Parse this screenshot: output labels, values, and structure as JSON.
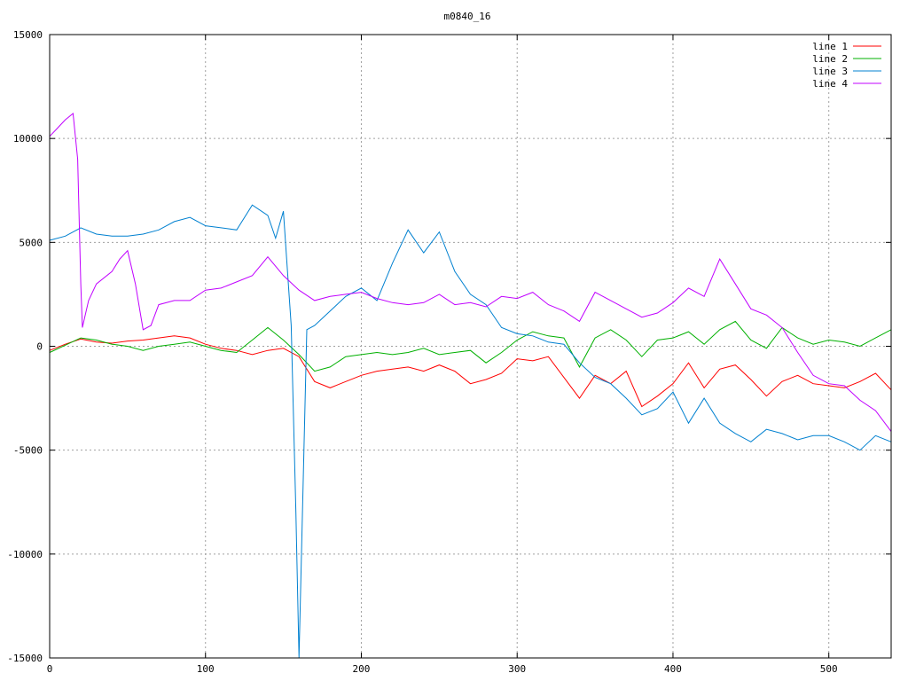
{
  "chart_data": {
    "type": "line",
    "title": "m0840_16",
    "xlabel": "",
    "ylabel": "",
    "xlim": [
      0,
      540
    ],
    "ylim": [
      -15000,
      15000
    ],
    "xticks": [
      0,
      100,
      200,
      300,
      400,
      500
    ],
    "yticks": [
      -15000,
      -10000,
      -5000,
      0,
      5000,
      10000,
      15000
    ],
    "grid": true,
    "legend_position": "top-right",
    "series": [
      {
        "name": "line 1",
        "color": "#ff0000",
        "x": [
          0,
          10,
          20,
          30,
          40,
          50,
          60,
          70,
          80,
          90,
          100,
          110,
          120,
          130,
          140,
          150,
          160,
          170,
          180,
          190,
          200,
          210,
          220,
          230,
          240,
          250,
          260,
          270,
          280,
          290,
          300,
          310,
          320,
          330,
          340,
          350,
          360,
          370,
          380,
          390,
          400,
          410,
          420,
          430,
          440,
          450,
          460,
          470,
          480,
          490,
          500,
          510,
          520,
          530,
          540
        ],
        "y": [
          -200,
          100,
          350,
          200,
          150,
          250,
          300,
          400,
          500,
          400,
          100,
          -100,
          -200,
          -400,
          -200,
          -100,
          -500,
          -1700,
          -2000,
          -1700,
          -1400,
          -1200,
          -1100,
          -1000,
          -1200,
          -900,
          -1200,
          -1800,
          -1600,
          -1300,
          -600,
          -700,
          -500,
          -1500,
          -2500,
          -1400,
          -1800,
          -1200,
          -2900,
          -2400,
          -1800,
          -800,
          -2000,
          -1100,
          -900,
          -1600,
          -2400,
          -1700,
          -1400,
          -1800,
          -1900,
          -2000,
          -1700,
          -1300,
          -2100
        ]
      },
      {
        "name": "line 2",
        "color": "#00b000",
        "x": [
          0,
          10,
          20,
          30,
          40,
          50,
          60,
          70,
          80,
          90,
          100,
          110,
          120,
          130,
          140,
          150,
          160,
          170,
          180,
          190,
          200,
          210,
          220,
          230,
          240,
          250,
          260,
          270,
          280,
          290,
          300,
          310,
          320,
          330,
          340,
          350,
          360,
          370,
          380,
          390,
          400,
          410,
          420,
          430,
          440,
          450,
          460,
          470,
          480,
          490,
          500,
          510,
          520,
          530,
          540
        ],
        "y": [
          -300,
          50,
          400,
          300,
          100,
          0,
          -200,
          0,
          100,
          200,
          0,
          -200,
          -300,
          300,
          900,
          300,
          -400,
          -1200,
          -1000,
          -500,
          -400,
          -300,
          -400,
          -300,
          -100,
          -400,
          -300,
          -200,
          -800,
          -300,
          300,
          700,
          500,
          400,
          -1000,
          400,
          800,
          300,
          -500,
          300,
          400,
          700,
          100,
          800,
          1200,
          300,
          -100,
          900,
          400,
          100,
          300,
          200,
          0,
          400,
          800
        ]
      },
      {
        "name": "line 3",
        "color": "#0080d0",
        "x": [
          0,
          10,
          20,
          30,
          40,
          50,
          60,
          70,
          80,
          90,
          100,
          110,
          120,
          130,
          140,
          145,
          150,
          155,
          158,
          160,
          165,
          170,
          180,
          190,
          200,
          210,
          220,
          230,
          240,
          250,
          260,
          270,
          280,
          290,
          300,
          310,
          320,
          330,
          340,
          350,
          360,
          370,
          380,
          390,
          400,
          410,
          420,
          430,
          440,
          450,
          460,
          470,
          480,
          490,
          500,
          510,
          520,
          530,
          540
        ],
        "y": [
          5100,
          5300,
          5700,
          5400,
          5300,
          5300,
          5400,
          5600,
          6000,
          6200,
          5800,
          5700,
          5600,
          6800,
          6300,
          5200,
          6500,
          1000,
          -8000,
          -15000,
          800,
          1000,
          1700,
          2400,
          2800,
          2200,
          4000,
          5600,
          4500,
          5500,
          3600,
          2500,
          2000,
          900,
          600,
          500,
          200,
          100,
          -800,
          -1500,
          -1800,
          -2500,
          -3300,
          -3000,
          -2200,
          -3700,
          -2500,
          -3700,
          -4200,
          -4600,
          -4000,
          -4200,
          -4500,
          -4300,
          -4300,
          -4600,
          -5000,
          -4300,
          -4600
        ]
      },
      {
        "name": "line 4",
        "color": "#c000ff",
        "x": [
          0,
          5,
          10,
          15,
          18,
          20,
          21,
          25,
          30,
          40,
          45,
          50,
          55,
          60,
          65,
          70,
          80,
          90,
          100,
          110,
          120,
          130,
          140,
          150,
          160,
          170,
          180,
          190,
          200,
          210,
          220,
          230,
          240,
          250,
          260,
          270,
          280,
          290,
          300,
          310,
          320,
          330,
          340,
          350,
          360,
          370,
          380,
          390,
          400,
          410,
          420,
          430,
          440,
          450,
          460,
          470,
          480,
          490,
          500,
          510,
          520,
          530,
          540
        ],
        "y": [
          10100,
          10500,
          10900,
          11200,
          9000,
          3000,
          900,
          2200,
          3000,
          3600,
          4200,
          4600,
          3000,
          800,
          1000,
          2000,
          2200,
          2200,
          2700,
          2800,
          3100,
          3400,
          4300,
          3400,
          2700,
          2200,
          2400,
          2500,
          2600,
          2300,
          2100,
          2000,
          2100,
          2500,
          2000,
          2100,
          1900,
          2400,
          2300,
          2600,
          2000,
          1700,
          1200,
          2600,
          2200,
          1800,
          1400,
          1600,
          2100,
          2800,
          2400,
          4200,
          3000,
          1800,
          1500,
          900,
          -300,
          -1400,
          -1800,
          -1900,
          -2600,
          -3100,
          -4100
        ]
      }
    ]
  }
}
